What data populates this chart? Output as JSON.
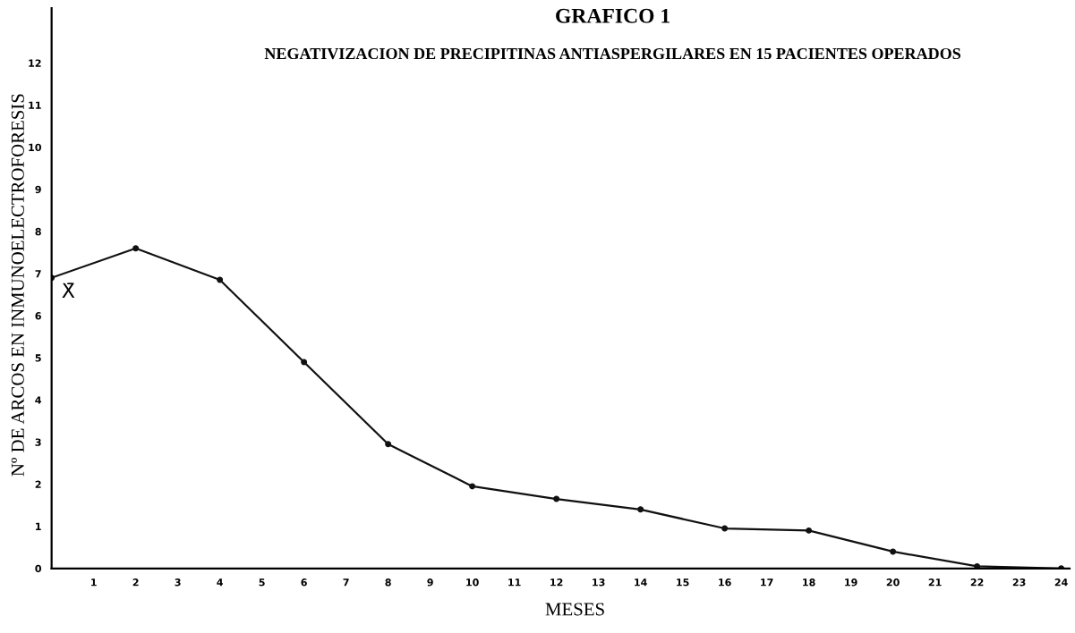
{
  "chart_data": {
    "type": "line",
    "title": "GRAFICO 1",
    "subtitle": "NEGATIVIZACION DE PRECIPITINAS ANTIASPERGILARES EN 15 PACIENTES OPERADOS",
    "xlabel": "MESES",
    "ylabel": "Nº DE ARCOS EN INMUNOELECTROFORESIS",
    "x": [
      0,
      2,
      4,
      6,
      8,
      10,
      12,
      14,
      16,
      18,
      20,
      22,
      24
    ],
    "series": [
      {
        "color": "#111111",
        "values": [
          6.9,
          7.6,
          6.85,
          4.9,
          2.95,
          1.95,
          1.65,
          1.4,
          0.95,
          0.9,
          0.4,
          0.05,
          0
        ]
      }
    ],
    "annotations": [
      {
        "text": "X̄",
        "x": 0,
        "y": 6.9
      }
    ],
    "xlim": [
      0,
      24.2
    ],
    "ylim": [
      0,
      13.3
    ],
    "xticks": [
      1,
      2,
      3,
      4,
      5,
      6,
      7,
      8,
      9,
      10,
      11,
      12,
      13,
      14,
      15,
      16,
      17,
      18,
      19,
      20,
      21,
      22,
      23,
      24
    ],
    "yticks": [
      0,
      1,
      2,
      3,
      4,
      5,
      6,
      7,
      8,
      9,
      10,
      11,
      12
    ],
    "marker": "circle",
    "line_style": "solid",
    "grid": false,
    "legend": false
  }
}
